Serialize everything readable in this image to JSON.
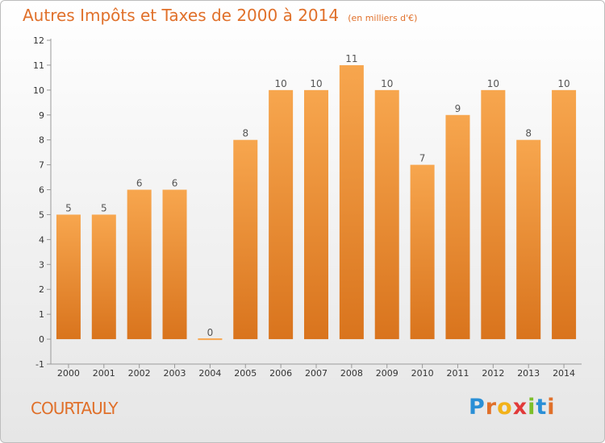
{
  "title": "Autres Impôts et Taxes de 2000 à 2014",
  "subtitle": "(en milliers d'€)",
  "place": "COURTAULY",
  "logo": "Proxiti",
  "logo_colors": [
    "#2a8fd6",
    "#e0702a",
    "#f2b21a",
    "#e13a3a",
    "#7cbf2a",
    "#2a8fd6",
    "#e0702a"
  ],
  "colors": {
    "bar_light": "#f7a64e",
    "bar_dark": "#d9741d",
    "text": "#e0702a",
    "axis": "#999999",
    "tick_text": "#333333",
    "value_text": "#555555"
  },
  "chart_data": {
    "type": "bar",
    "title": "Autres Impôts et Taxes de 2000 à 2014",
    "subtitle": "(en milliers d'€)",
    "categories": [
      "2000",
      "2001",
      "2002",
      "2003",
      "2004",
      "2005",
      "2006",
      "2007",
      "2008",
      "2009",
      "2010",
      "2011",
      "2012",
      "2013",
      "2014"
    ],
    "values": [
      5,
      5,
      6,
      6,
      0,
      8,
      10,
      10,
      11,
      10,
      7,
      9,
      10,
      8,
      10
    ],
    "ylim": [
      -1,
      12
    ],
    "yticks": [
      "-1",
      "0",
      "1",
      "2",
      "3",
      "4",
      "5",
      "6",
      "7",
      "8",
      "9",
      "10",
      "11",
      "12"
    ],
    "grid": false,
    "xlabel": "",
    "ylabel": ""
  }
}
